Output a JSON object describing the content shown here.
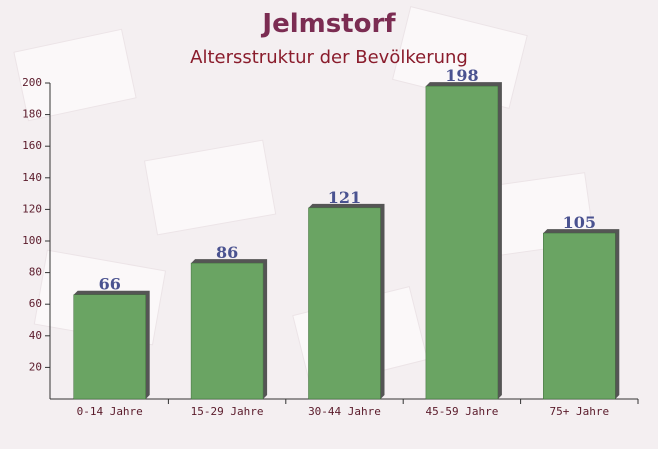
{
  "chart_data": {
    "type": "bar",
    "title": "Jelmstorf",
    "subtitle": "Altersstruktur der Bevölkerung",
    "categories": [
      "0-14 Jahre",
      "15-29 Jahre",
      "30-44 Jahre",
      "45-59 Jahre",
      "75+ Jahre"
    ],
    "values": [
      66,
      86,
      121,
      198,
      105
    ],
    "color": "#6aa463",
    "ylim": [
      0,
      200
    ],
    "yticks": [
      20,
      40,
      60,
      80,
      100,
      120,
      140,
      160,
      180,
      200
    ]
  }
}
